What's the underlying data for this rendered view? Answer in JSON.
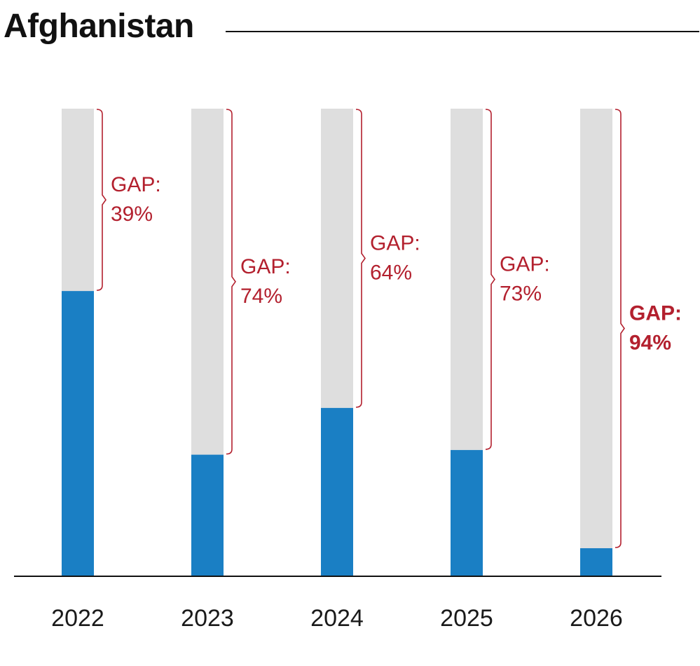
{
  "title": "Afghanistan",
  "chart_data": {
    "type": "bar",
    "title": "Afghanistan",
    "xlabel": "",
    "ylabel": "",
    "categories": [
      "2022",
      "2023",
      "2024",
      "2025",
      "2026"
    ],
    "series": [
      {
        "values": [
          61,
          26,
          36,
          27,
          6
        ]
      },
      {
        "values": [
          39,
          74,
          64,
          73,
          94
        ]
      }
    ],
    "annotations": [
      {
        "category": "2022",
        "line1": "GAP:",
        "line2": "39%",
        "highlight": false
      },
      {
        "category": "2023",
        "line1": "GAP:",
        "line2": "74%",
        "highlight": false
      },
      {
        "category": "2024",
        "line1": "GAP:",
        "line2": "64%",
        "highlight": false
      },
      {
        "category": "2025",
        "line1": "GAP:",
        "line2": "73%",
        "highlight": false
      },
      {
        "category": "2026",
        "line1": "GAP:",
        "line2": "94%",
        "highlight": true
      }
    ],
    "ylim": [
      0,
      100
    ],
    "stacked": true,
    "grid": false,
    "colors": {
      "funded": "#1a7fc4",
      "gap": "#dedede",
      "annotation": "#b3202e",
      "axis": "#111111"
    }
  }
}
